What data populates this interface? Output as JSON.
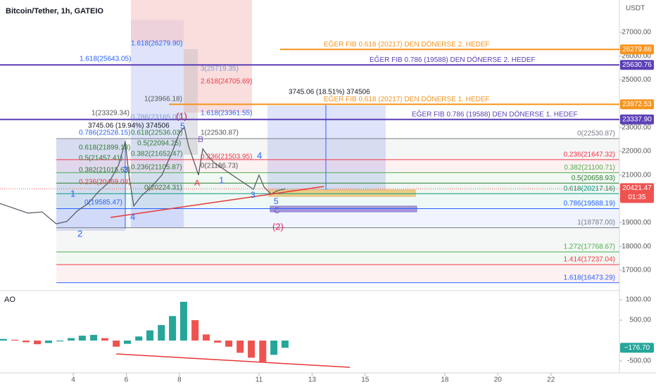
{
  "chart_data": {
    "type": "line",
    "title": "Bitcoin/Tether, 1h, GATEIO",
    "currency": "USDT",
    "indicator": "AO",
    "x": [
      1.24,
      1.77,
      2.3,
      2.83,
      3.36,
      3.76,
      4.16,
      4.56,
      4.95,
      5.35,
      5.7,
      5.96,
      6.1,
      6.28,
      6.55,
      6.94,
      7.34,
      7.74,
      8.01,
      8.19,
      8.35,
      8.54,
      8.72,
      8.88,
      9.07,
      9.33,
      9.6,
      9.99,
      10.39,
      10.79,
      11.0,
      11.19,
      11.45,
      11.72,
      11.98
    ],
    "values": [
      19800,
      19600,
      19400,
      19450,
      18950,
      19050,
      19500,
      19800,
      20300,
      20700,
      21400,
      22400,
      21000,
      19700,
      20100,
      20500,
      21000,
      22000,
      22800,
      23000,
      22200,
      21600,
      21000,
      22100,
      21800,
      21500,
      21300,
      21000,
      20700,
      20400,
      21000,
      20500,
      20200,
      20350,
      20421.47
    ],
    "color": "#50535e",
    "xlim": [
      1.24,
      24.58
    ],
    "xticks": [
      4,
      6,
      8,
      11,
      13,
      15,
      18,
      20,
      22
    ],
    "ylim": [
      16230,
      28360
    ],
    "yticks": [
      {
        "value": 27000,
        "label": "27000.00"
      },
      {
        "value": 26000,
        "label": "26000.00"
      },
      {
        "value": 25000,
        "label": "25000.00"
      },
      {
        "value": 24000,
        "label": "24000.00"
      },
      {
        "value": 23000,
        "label": "23000.00"
      },
      {
        "value": 22000,
        "label": "22000.00"
      },
      {
        "value": 21000,
        "label": "21000.00"
      },
      {
        "value": 20000,
        "label": "20000.00"
      },
      {
        "value": 19000,
        "label": "19000.00"
      },
      {
        "value": 18000,
        "label": "18000.00"
      },
      {
        "value": 17000,
        "label": "17000.00"
      }
    ],
    "last_price": {
      "value": 20421.47,
      "label": "20421.47"
    },
    "countdown": "01:35",
    "levels": [
      {
        "name": "EĞER FIB 0.618 (20217) DEN DÖNERSE 2. HEDEF",
        "value": 26279.86,
        "label": "26279.86",
        "color": "#f7941d"
      },
      {
        "name": "EĞER FIB 0.786 (19588) DEN DÖNERSE 2. HEDEF",
        "value": 25630.76,
        "label": "25630.76",
        "color": "#5b3fb5"
      },
      {
        "name": "EĞER FIB 0.618 (20217) DEN DÖNERSE 1. HEDEF",
        "value": 23972.53,
        "label": "23972.53",
        "color": "#f7941d"
      },
      {
        "name": "EĞER FIB 0.786 (19588) DEN DÖNERSE 1. HEDEF",
        "value": 23337.9,
        "label": "23337.90",
        "color": "#5b3fb5"
      }
    ],
    "fib_levels": [
      {
        "label": "0(22530.87)",
        "value": 22530.87,
        "color": "#787b86"
      },
      {
        "label": "0.236(21647.32)",
        "value": 21647.32,
        "color": "#f23645"
      },
      {
        "label": "0.382(21100.71)",
        "value": 21100.71,
        "color": "#4caf50"
      },
      {
        "label": "0.5(20658.93)",
        "value": 20658.93,
        "color": "#2e7d32"
      },
      {
        "label": "0.618(20217.16)",
        "value": 20217.16,
        "color": "#089981"
      },
      {
        "label": "0.786(19588.19)",
        "value": 19588.19,
        "color": "#2962ff"
      },
      {
        "label": "1(18787.00)",
        "value": 18787.0,
        "color": "#787b86"
      },
      {
        "label": "1.272(17768.67)",
        "value": 17768.67,
        "color": "#4caf50"
      },
      {
        "label": "1.414(17237.04)",
        "value": 17237.04,
        "color": "#f23645"
      },
      {
        "label": "1.618(16473.29)",
        "value": 16473.29,
        "color": "#2962ff"
      }
    ],
    "annotations": [
      "1.618(26279.90)",
      "1.618(25643.05)",
      "3(25719.35)",
      "2.618(24705.69)",
      "1(23966.18)",
      "1.618(23361.55)",
      "1(23329.34)",
      "0.786(23165.00)",
      "(1)",
      "3745.06 (19.94%) 374506",
      "0.786(22528.15)",
      "5",
      "0.618(22536.03)",
      "1(22530.87)",
      "0.618(21899.18)",
      "0.5(22094.25)",
      "B",
      "4",
      "0.5(21457.41)",
      "0.382(21652.47)",
      "0.236(21503.95)",
      "0.382(21015.63)",
      "3",
      "0.236(21105.87)",
      "0(21186.73)",
      "0.236(20469.03)",
      "A",
      "1",
      "0(20224.31)",
      "1",
      "0(19585.47)",
      "3",
      "5",
      "C",
      "4",
      "2",
      "(2)",
      "3745.06 (18.51%) 374506"
    ],
    "ao": {
      "x": [
        1.37,
        1.8,
        2.22,
        2.65,
        3.07,
        3.5,
        3.92,
        4.34,
        4.77,
        5.19,
        5.62,
        6.04,
        6.47,
        6.89,
        7.32,
        7.74,
        8.16,
        8.59,
        9.01,
        9.44,
        9.86,
        10.29,
        10.71,
        11.14,
        11.56,
        11.98
      ],
      "values": [
        40,
        20,
        -40,
        -90,
        -60,
        -20,
        60,
        120,
        140,
        60,
        -150,
        -80,
        100,
        250,
        380,
        600,
        950,
        500,
        150,
        -50,
        -150,
        -300,
        -420,
        -520,
        -350,
        -176.7
      ],
      "up_color": "#26a69a",
      "down_color": "#ef5350",
      "ylim": [
        -793,
        1190
      ],
      "yticks": [
        {
          "value": 1000,
          "label": "1000.00"
        },
        {
          "value": 500,
          "label": "500.00"
        },
        {
          "value": -500,
          "label": "-500.00"
        }
      ],
      "last": {
        "value": -176.7,
        "label": "−176.70"
      }
    }
  }
}
